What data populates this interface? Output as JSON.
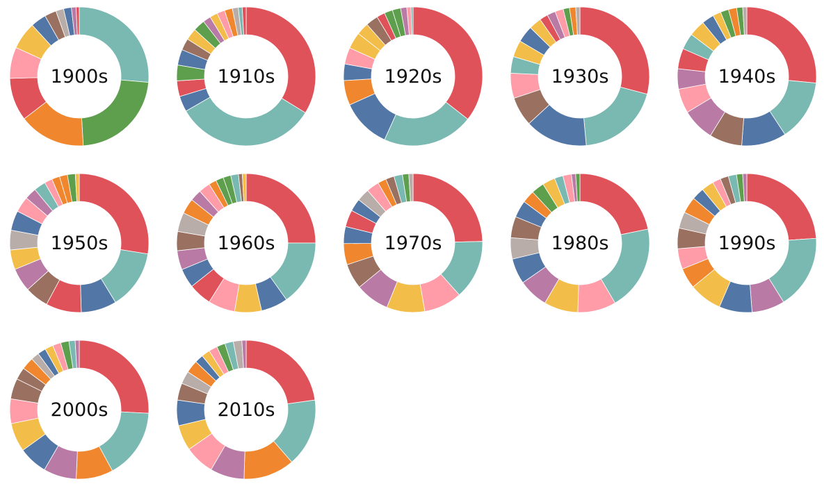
{
  "palette": [
    "#e05259",
    "#7ab8b2",
    "#5277a6",
    "#9a7060",
    "#f3bd4a",
    "#ff9ca8",
    "#b97aa5",
    "#b9ada9",
    "#f0872e",
    "#5e9f4d",
    "#4c78a8",
    "#e45756",
    "#72b7b2",
    "#54a24b",
    "#eeca3b",
    "#ff9da6",
    "#9d755d",
    "#bab0ac",
    "#b279a2",
    "#f58518"
  ],
  "chart_data": [
    {
      "type": "pie",
      "center_label": "1900s",
      "values": [
        29,
        25,
        17,
        11,
        8,
        7,
        4,
        3,
        2,
        2,
        1.2,
        0.8
      ],
      "colors": [
        "#7ab8b2",
        "#5e9f4d",
        "#f0872e",
        "#e05259",
        "#ff9ca8",
        "#f3bd4a",
        "#5277a6",
        "#9a7060",
        "#b9ada9",
        "#5277a6",
        "#b97aa5",
        "#e05259"
      ]
    },
    {
      "type": "pie",
      "center_label": "1910s",
      "values": [
        37,
        36,
        4,
        4,
        4,
        4,
        3,
        3,
        3,
        2,
        2,
        2,
        2,
        1.5,
        1,
        1
      ],
      "colors": [
        "#e05259",
        "#7ab8b2",
        "#5277a6",
        "#e05259",
        "#5e9f4d",
        "#5277a6",
        "#9a7060",
        "#f3bd4a",
        "#5e9f4d",
        "#b97aa5",
        "#f3bd4a",
        "#ff9ca8",
        "#f0872e",
        "#b9ada9",
        "#7ab8b2",
        "#e05259"
      ]
    },
    {
      "type": "pie",
      "center_label": "1920s",
      "values": [
        37,
        22,
        12,
        6,
        4,
        4,
        4,
        3,
        3,
        2,
        2,
        2,
        1.5,
        1,
        0.5
      ],
      "colors": [
        "#e05259",
        "#7ab8b2",
        "#5277a6",
        "#f0872e",
        "#5277a6",
        "#ff9ca8",
        "#f3bd4a",
        "#f3bd4a",
        "#9a7060",
        "#e05259",
        "#5e9f4d",
        "#5e9f4d",
        "#b97aa5",
        "#ff9ca8",
        "#7ab8b2"
      ]
    },
    {
      "type": "pie",
      "center_label": "1930s",
      "values": [
        30,
        20,
        15,
        7,
        6,
        4,
        4,
        4,
        3,
        2,
        2,
        2,
        1.5,
        1.5,
        1
      ],
      "colors": [
        "#e05259",
        "#7ab8b2",
        "#5277a6",
        "#9a7060",
        "#ff9ca8",
        "#7ab8b2",
        "#f3bd4a",
        "#5277a6",
        "#f3bd4a",
        "#e05259",
        "#b97aa5",
        "#ff9ca8",
        "#5e9f4d",
        "#f0872e",
        "#b9ada9"
      ]
    },
    {
      "type": "pie",
      "center_label": "1940s",
      "values": [
        28,
        15,
        11,
        8,
        8,
        6,
        5,
        5,
        4,
        4,
        3,
        2,
        2,
        2,
        1.5,
        1
      ],
      "colors": [
        "#e05259",
        "#7ab8b2",
        "#5277a6",
        "#9a7060",
        "#b97aa5",
        "#ff9ca8",
        "#b97aa5",
        "#e05259",
        "#7ab8b2",
        "#f3bd4a",
        "#5277a6",
        "#f3bd4a",
        "#5e9f4d",
        "#f0872e",
        "#5e9f4d",
        "#b9ada9"
      ]
    },
    {
      "type": "pie",
      "center_label": "1950s",
      "values": [
        30,
        15,
        9,
        9,
        6,
        6,
        5,
        5,
        5,
        4,
        3,
        3,
        2,
        2,
        2,
        2,
        1
      ],
      "colors": [
        "#e05259",
        "#7ab8b2",
        "#5277a6",
        "#e05259",
        "#9a7060",
        "#b97aa5",
        "#f3bd4a",
        "#b9ada9",
        "#5277a6",
        "#ff9ca8",
        "#b97aa5",
        "#7ab8b2",
        "#ff9ca8",
        "#f0872e",
        "#f0872e",
        "#5e9f4d",
        "#f3bd4a"
      ]
    },
    {
      "type": "pie",
      "center_label": "1960s",
      "values": [
        28,
        17,
        7,
        7,
        7,
        6,
        5,
        5,
        5,
        5,
        4,
        3,
        3,
        2,
        2,
        2,
        2,
        1,
        1
      ],
      "colors": [
        "#e05259",
        "#7ab8b2",
        "#5277a6",
        "#f3bd4a",
        "#ff9ca8",
        "#e05259",
        "#5277a6",
        "#b97aa5",
        "#9a7060",
        "#b9ada9",
        "#f0872e",
        "#b97aa5",
        "#ff9ca8",
        "#f0872e",
        "#5e9f4d",
        "#5e9f4d",
        "#7ab8b2",
        "#9a7060",
        "#f3bd4a"
      ]
    },
    {
      "type": "pie",
      "center_label": "1970s",
      "values": [
        25,
        14,
        9,
        9,
        8,
        6,
        5,
        4,
        4,
        3,
        3,
        3,
        2,
        2,
        2,
        1.5,
        1
      ],
      "colors": [
        "#e05259",
        "#7ab8b2",
        "#ff9ca8",
        "#f3bd4a",
        "#b97aa5",
        "#9a7060",
        "#f0872e",
        "#5277a6",
        "#e05259",
        "#5277a6",
        "#b9ada9",
        "#ff9ca8",
        "#f0872e",
        "#9a7060",
        "#7ab8b2",
        "#5e9f4d",
        "#b9ada9"
      ]
    },
    {
      "type": "pie",
      "center_label": "1980s",
      "values": [
        22,
        20,
        9,
        8,
        7,
        6,
        5,
        5,
        4,
        3,
        3,
        3,
        2,
        2,
        1,
        1
      ],
      "colors": [
        "#e05259",
        "#7ab8b2",
        "#ff9ca8",
        "#f3bd4a",
        "#b97aa5",
        "#5277a6",
        "#b9ada9",
        "#9a7060",
        "#5277a6",
        "#f0872e",
        "#5e9f4d",
        "#f3bd4a",
        "#7ab8b2",
        "#ff9ca8",
        "#b97aa5",
        "#5e9f4d"
      ]
    },
    {
      "type": "pie",
      "center_label": "1990s",
      "values": [
        25,
        18,
        8,
        8,
        8,
        5,
        5,
        5,
        4,
        4,
        3,
        3,
        2,
        2,
        2,
        1.5,
        1
      ],
      "colors": [
        "#e05259",
        "#7ab8b2",
        "#b97aa5",
        "#5277a6",
        "#f3bd4a",
        "#f0872e",
        "#ff9ca8",
        "#9a7060",
        "#b9ada9",
        "#f0872e",
        "#5277a6",
        "#f3bd4a",
        "#ff9ca8",
        "#9a7060",
        "#7ab8b2",
        "#5e9f4d",
        "#b97aa5"
      ]
    },
    {
      "type": "pie",
      "center_label": "2000s",
      "values": [
        27,
        17,
        9,
        8,
        7,
        7,
        6,
        5,
        3,
        3,
        2,
        2,
        2,
        2,
        2,
        1.5,
        1
      ],
      "colors": [
        "#e05259",
        "#7ab8b2",
        "#f0872e",
        "#b97aa5",
        "#5277a6",
        "#f3bd4a",
        "#ff9ca8",
        "#9a7060",
        "#9a7060",
        "#f0872e",
        "#b9ada9",
        "#5277a6",
        "#f3bd4a",
        "#ff9ca8",
        "#5e9f4d",
        "#7ab8b2",
        "#b97aa5"
      ]
    },
    {
      "type": "pie",
      "center_label": "2010s",
      "values": [
        23,
        16,
        12,
        8,
        7,
        6,
        6,
        4,
        3,
        3,
        2,
        2,
        2,
        2,
        2,
        2,
        1
      ],
      "colors": [
        "#e05259",
        "#7ab8b2",
        "#f0872e",
        "#b97aa5",
        "#ff9ca8",
        "#f3bd4a",
        "#5277a6",
        "#9a7060",
        "#b9ada9",
        "#f0872e",
        "#5277a6",
        "#f3bd4a",
        "#ff9ca8",
        "#5e9f4d",
        "#7ab8b2",
        "#b9ada9",
        "#b97aa5"
      ]
    }
  ]
}
